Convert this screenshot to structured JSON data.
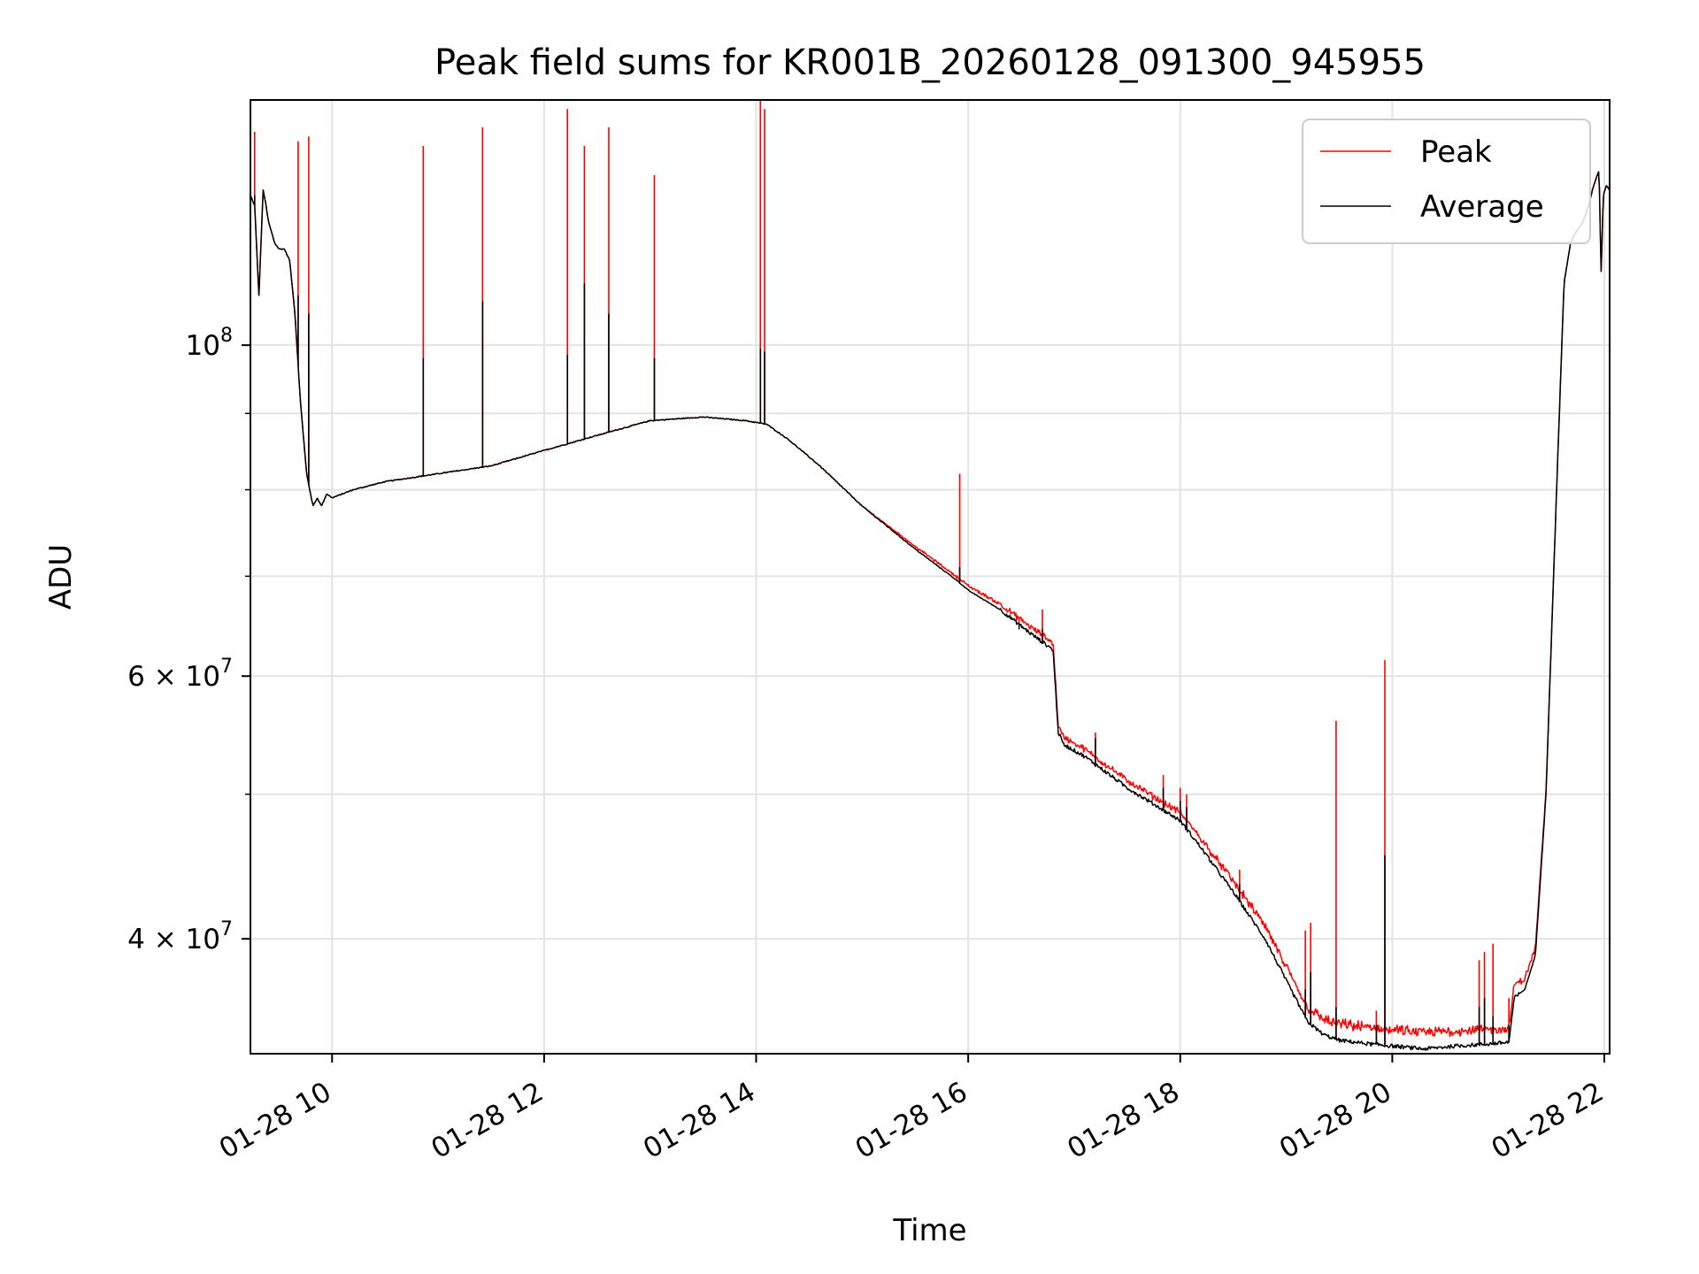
{
  "chart_data": {
    "type": "line",
    "title": "Peak field sums for KR001B_20260128_091300_945955",
    "xlabel": "Time",
    "ylabel": "ADU",
    "yscale": "log",
    "ylim": [
      33500000,
      146000000
    ],
    "xlim_hours": [
      9.23,
      22.05
    ],
    "grid": true,
    "legend_position": "upper right",
    "x_tick_hours": [
      10,
      12,
      14,
      16,
      18,
      20,
      22
    ],
    "x_tick_labels": [
      "01-28 10",
      "01-28 12",
      "01-28 14",
      "01-28 16",
      "01-28 18",
      "01-28 20",
      "01-28 22"
    ],
    "y_major_ticks": [
      {
        "value": 100000000,
        "base": "10",
        "exp": "8",
        "mantissa": ""
      },
      {
        "value": 60000000,
        "base": "10",
        "exp": "7",
        "mantissa": "6"
      },
      {
        "value": 40000000,
        "base": "10",
        "exp": "7",
        "mantissa": "4"
      }
    ],
    "y_minor_ticks": [
      50000000,
      70000000,
      80000000,
      90000000
    ],
    "series": [
      {
        "name": "Peak",
        "color": "#ff0000"
      },
      {
        "name": "Average",
        "color": "#000000"
      }
    ],
    "baseline": {
      "hours": [
        9.23,
        9.27,
        9.31,
        9.35,
        9.37,
        9.4,
        9.43,
        9.46,
        9.5,
        9.55,
        9.6,
        9.65,
        9.7,
        9.76,
        9.82,
        9.86,
        9.9,
        9.95,
        10.0,
        10.2,
        10.5,
        11.0,
        11.5,
        12.0,
        12.5,
        13.0,
        13.5,
        13.9,
        14.1,
        14.3,
        14.6,
        15.0,
        15.5,
        15.9,
        16.0,
        16.3,
        16.6,
        16.8,
        16.85,
        16.9,
        17.1,
        17.5,
        17.8,
        18.0,
        18.2,
        18.5,
        18.8,
        19.0,
        19.2,
        19.35,
        19.5,
        19.8,
        20.0,
        20.3,
        20.6,
        20.9,
        21.1,
        21.15,
        21.25,
        21.35,
        21.45,
        21.55,
        21.62,
        21.68,
        21.73,
        21.8,
        21.85,
        21.9,
        21.95,
        21.97,
        21.99,
        22.02,
        22.05
      ],
      "avg": [
        126000000,
        124000000,
        108000000,
        127000000,
        125000000,
        121000000,
        119000000,
        117000000,
        116000000,
        116000000,
        114000000,
        105000000,
        92000000,
        82000000,
        78000000,
        79000000,
        78000000,
        79500000,
        79000000,
        80000000,
        81000000,
        82000000,
        83000000,
        85000000,
        87000000,
        89000000,
        89500000,
        89000000,
        88500000,
        86500000,
        83000000,
        78000000,
        73000000,
        69500000,
        68500000,
        66500000,
        64000000,
        62500000,
        55000000,
        54000000,
        53000000,
        50500000,
        49000000,
        48000000,
        46000000,
        43000000,
        40000000,
        37500000,
        35200000,
        34500000,
        34200000,
        34000000,
        33900000,
        33750000,
        33900000,
        34000000,
        34100000,
        36500000,
        37000000,
        39000000,
        50000000,
        80000000,
        110000000,
        117000000,
        119000000,
        121000000,
        124000000,
        128000000,
        131000000,
        112000000,
        126000000,
        128000000,
        127000000
      ],
      "peak_offset": [
        0.0,
        0.0,
        0.0,
        0.0,
        0.0,
        0.0,
        0.0,
        0.0,
        0.0,
        0.0,
        0.0,
        0.0,
        0.0,
        0.0,
        0.0,
        0.0,
        0.0,
        0.0,
        0.0,
        0.0,
        0.0,
        0.0,
        0.0,
        0.0,
        0.0,
        0.0,
        0.0,
        0.0,
        0.0,
        0.0,
        0.0,
        0.0,
        0.003,
        0.004,
        0.005,
        0.006,
        0.007,
        0.008,
        0.008,
        0.008,
        0.008,
        0.008,
        0.008,
        0.009,
        0.01,
        0.012,
        0.014,
        0.015,
        0.016,
        0.017,
        0.018,
        0.018,
        0.018,
        0.018,
        0.017,
        0.016,
        0.015,
        0.014,
        0.012,
        0.008,
        0.004,
        0.0,
        0.0,
        0.0,
        0.0,
        0.0,
        0.0,
        0.0,
        0.0,
        0.0,
        0.0,
        0.0,
        0.0
      ]
    },
    "spikes": [
      {
        "hour": 9.27,
        "peak": 139000000,
        "avg": 126000000
      },
      {
        "hour": 9.68,
        "peak": 137000000,
        "avg": 108000000
      },
      {
        "hour": 9.78,
        "peak": 138000000,
        "avg": 105000000
      },
      {
        "hour": 10.86,
        "peak": 136000000,
        "avg": 98000000
      },
      {
        "hour": 11.42,
        "peak": 140000000,
        "avg": 107000000
      },
      {
        "hour": 12.22,
        "peak": 144000000,
        "avg": 98500000
      },
      {
        "hour": 12.38,
        "peak": 136000000,
        "avg": 110000000
      },
      {
        "hour": 12.61,
        "peak": 140000000,
        "avg": 105000000
      },
      {
        "hour": 13.04,
        "peak": 130000000,
        "avg": 98000000
      },
      {
        "hour": 14.04,
        "peak": 146000000,
        "avg": 99500000
      },
      {
        "hour": 14.08,
        "peak": 144000000,
        "avg": 99000000
      },
      {
        "hour": 15.92,
        "peak": 82000000,
        "avg": 71000000
      },
      {
        "hour": 16.48,
        "peak": 65500000,
        "avg": 64500000
      },
      {
        "hour": 16.7,
        "peak": 66500000,
        "avg": 64500000
      },
      {
        "hour": 17.2,
        "peak": 55000000,
        "avg": 54500000
      },
      {
        "hour": 17.84,
        "peak": 51500000,
        "avg": 50500000
      },
      {
        "hour": 18.0,
        "peak": 50500000,
        "avg": 49500000
      },
      {
        "hour": 18.06,
        "peak": 50000000,
        "avg": 49000000
      },
      {
        "hour": 18.56,
        "peak": 44500000,
        "avg": 43500000
      },
      {
        "hour": 19.18,
        "peak": 40500000,
        "avg": 37000000
      },
      {
        "hour": 19.23,
        "peak": 41000000,
        "avg": 38000000
      },
      {
        "hour": 19.47,
        "peak": 56000000,
        "avg": 36000000
      },
      {
        "hour": 19.85,
        "peak": 35800000,
        "avg": 35000000
      },
      {
        "hour": 19.93,
        "peak": 61500000,
        "avg": 45500000
      },
      {
        "hour": 20.82,
        "peak": 38700000,
        "avg": 36000000
      },
      {
        "hour": 20.87,
        "peak": 39200000,
        "avg": 36500000
      },
      {
        "hour": 20.95,
        "peak": 39700000,
        "avg": 35500000
      },
      {
        "hour": 21.1,
        "peak": 36500000,
        "avg": 35000000
      }
    ]
  }
}
